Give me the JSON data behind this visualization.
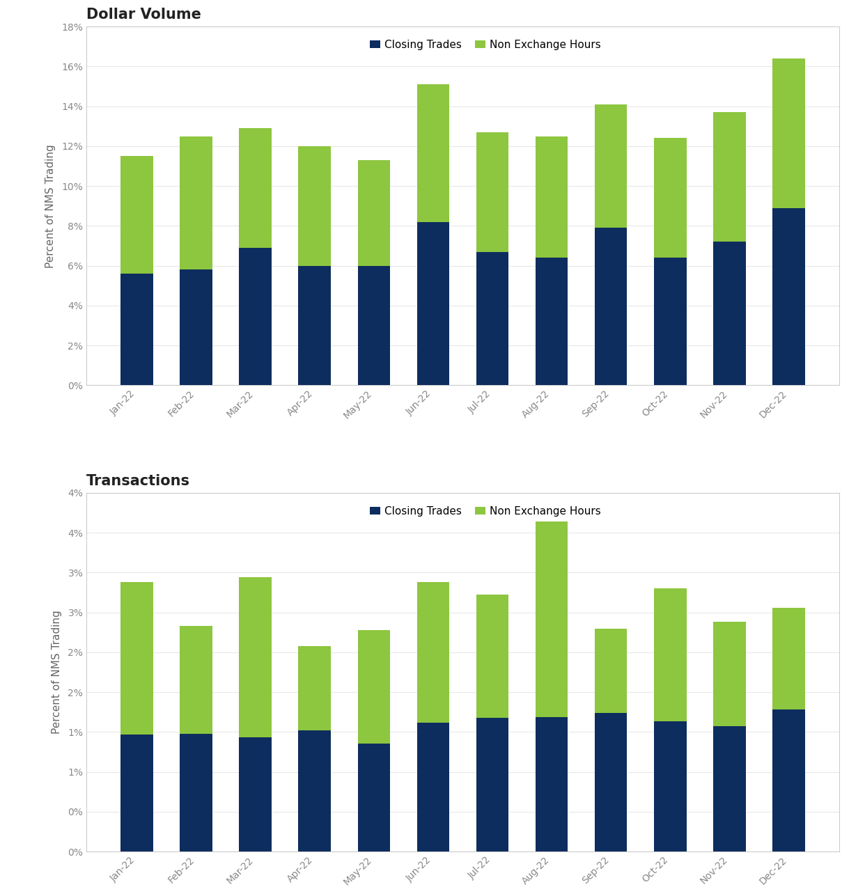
{
  "months": [
    "Jan-22",
    "Feb-22",
    "Mar-22",
    "Apr-22",
    "May-22",
    "Jun-22",
    "Jul-22",
    "Aug-22",
    "Sep-22",
    "Oct-22",
    "Nov-22",
    "Dec-22"
  ],
  "dv_closing": [
    5.6,
    5.8,
    6.9,
    6.0,
    6.0,
    8.2,
    6.7,
    6.4,
    7.9,
    6.4,
    7.2,
    8.9
  ],
  "dv_total": [
    11.5,
    12.5,
    12.9,
    12.0,
    11.3,
    15.1,
    12.7,
    12.5,
    14.1,
    12.4,
    13.7,
    16.4
  ],
  "tx_closing": [
    1.47,
    1.48,
    1.43,
    1.52,
    1.35,
    1.62,
    1.68,
    1.69,
    1.74,
    1.63,
    1.57,
    1.78
  ],
  "tx_total": [
    3.38,
    2.83,
    3.44,
    2.58,
    2.78,
    3.38,
    3.22,
    4.14,
    2.8,
    3.3,
    2.88,
    3.06
  ],
  "color_closing": "#0d2d5e",
  "color_nex": "#8dc63f",
  "title1": "Dollar Volume",
  "title2": "Transactions",
  "ylabel": "Percent of NMS Trading",
  "legend_closing": "Closing Trades",
  "legend_nex": "Non Exchange Hours",
  "ylim1": [
    0,
    18
  ],
  "ylim2": [
    0,
    4.5
  ],
  "yticks1": [
    0,
    2,
    4,
    6,
    8,
    10,
    12,
    14,
    16,
    18
  ],
  "yticks2": [
    0,
    0.5,
    1.0,
    1.5,
    2.0,
    2.5,
    3.0,
    3.5,
    4.0,
    4.5
  ],
  "background_color": "#ffffff",
  "bar_width": 0.55,
  "border_color": "#cccccc",
  "tick_color": "#888888",
  "label_color": "#666666"
}
